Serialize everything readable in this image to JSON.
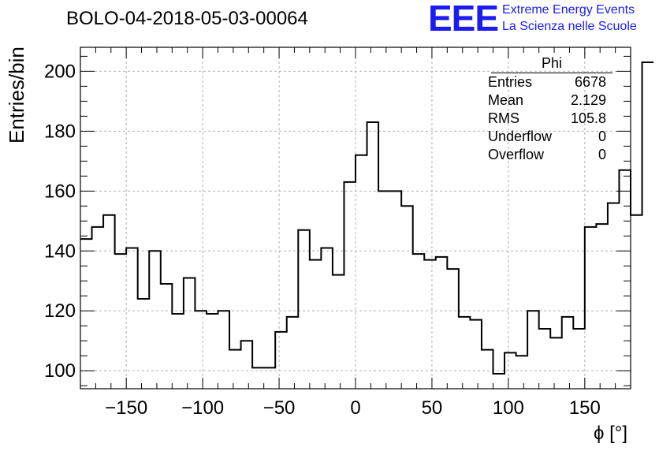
{
  "header": {
    "title": "BOLO-04-2018-05-03-00064"
  },
  "logo": {
    "letters": "EEE",
    "line1": "Extreme Energy Events",
    "line2": "La Scienza nelle Scuole",
    "color": "#1c1cf0"
  },
  "stats": {
    "title": "Phi",
    "rows": [
      {
        "label": "Entries",
        "value": "6678"
      },
      {
        "label": "Mean",
        "value": "2.129"
      },
      {
        "label": "RMS",
        "value": "105.8"
      },
      {
        "label": "Underflow",
        "value": "0"
      },
      {
        "label": "Overflow",
        "value": "0"
      }
    ]
  },
  "chart_data": {
    "type": "histogram",
    "title": "BOLO-04-2018-05-03-00064",
    "xlabel": "ϕ [°]",
    "ylabel": "Entries/bin",
    "xlim": [
      -180,
      180
    ],
    "ylim": [
      94,
      208
    ],
    "bin_width": 7.5,
    "x_ticks": [
      -150,
      -100,
      -50,
      0,
      50,
      100,
      150
    ],
    "y_ticks": [
      100,
      120,
      140,
      160,
      180,
      200
    ],
    "grid": true,
    "line_color": "#000000",
    "values": [
      144,
      148,
      152,
      139,
      141,
      124,
      140,
      129,
      119,
      131,
      120,
      119,
      120,
      107,
      110,
      101,
      101,
      113,
      118,
      147,
      137,
      141,
      132,
      163,
      172,
      183,
      160,
      160,
      155,
      139,
      137,
      138,
      134,
      118,
      117,
      107,
      99,
      106,
      105,
      120,
      114,
      111,
      118,
      114,
      148,
      149,
      156,
      167,
      152,
      203
    ]
  }
}
